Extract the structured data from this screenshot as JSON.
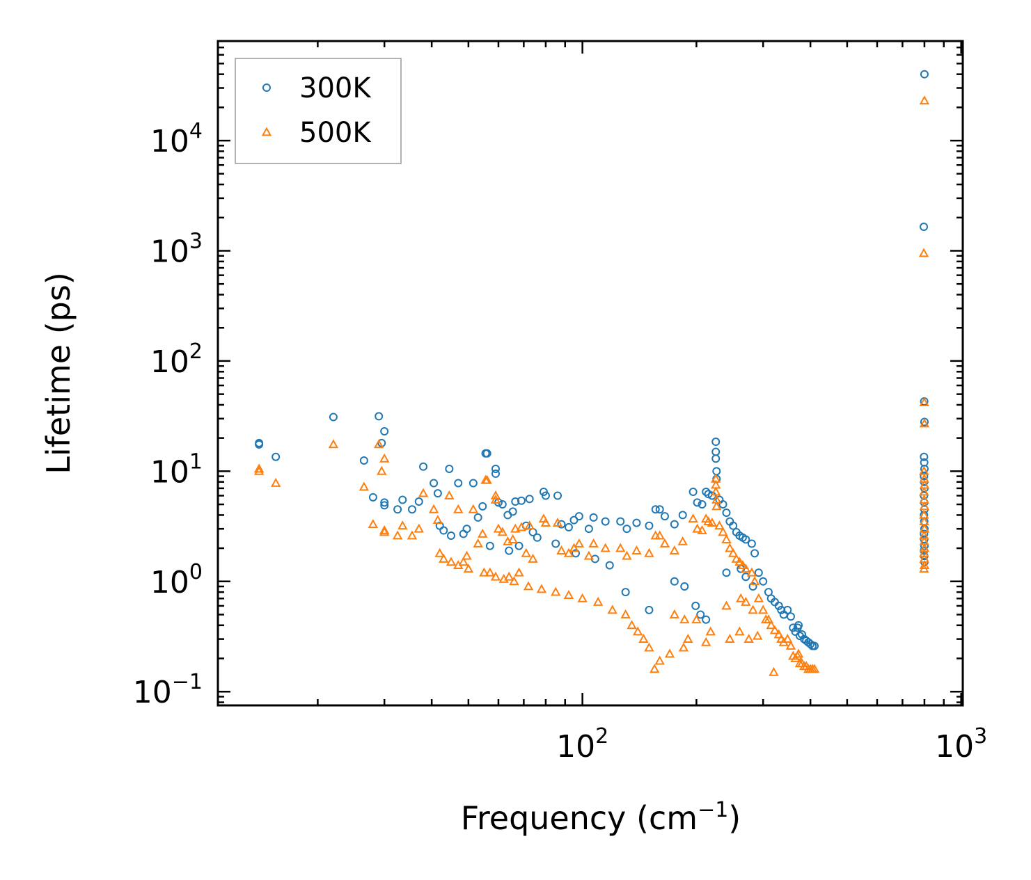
{
  "chart_data": {
    "type": "scatter",
    "title": "",
    "xlabel": "Frequency (cm",
    "xlabel_sup": "−1",
    "xlabel_close": ")",
    "ylabel": "Lifetime (ps)",
    "xscale": "log",
    "yscale": "log",
    "xlim": [
      10.9,
      1010
    ],
    "ylim": [
      0.075,
      80000
    ],
    "legend_position": "top-left",
    "x_ticks": [
      {
        "value": 100,
        "base": "10",
        "exp": "2"
      },
      {
        "value": 1000,
        "base": "10",
        "exp": "3"
      }
    ],
    "y_ticks": [
      {
        "value": 0.1,
        "base": "10",
        "exp": "−1"
      },
      {
        "value": 1,
        "base": "10",
        "exp": "0"
      },
      {
        "value": 10,
        "base": "10",
        "exp": "1"
      },
      {
        "value": 100,
        "base": "10",
        "exp": "2"
      },
      {
        "value": 1000,
        "base": "10",
        "exp": "3"
      },
      {
        "value": 10000,
        "base": "10",
        "exp": "4"
      }
    ],
    "series": [
      {
        "name": "300K",
        "marker": "circle",
        "color": "#1f77b4",
        "points": [
          [
            14.0,
            18.0
          ],
          [
            14.0,
            17.5
          ],
          [
            15.5,
            13.5
          ],
          [
            22.0,
            31.0
          ],
          [
            26.5,
            12.5
          ],
          [
            28.0,
            5.8
          ],
          [
            29.0,
            31.5
          ],
          [
            29.5,
            18.0
          ],
          [
            30.0,
            23.0
          ],
          [
            30.0,
            5.2
          ],
          [
            30.0,
            4.9
          ],
          [
            32.5,
            4.5
          ],
          [
            33.5,
            5.5
          ],
          [
            35.5,
            4.5
          ],
          [
            37.0,
            5.3
          ],
          [
            38.0,
            11.0
          ],
          [
            40.5,
            7.8
          ],
          [
            41.5,
            6.3
          ],
          [
            42.0,
            3.2
          ],
          [
            43.0,
            2.9
          ],
          [
            44.5,
            10.5
          ],
          [
            45.0,
            2.6
          ],
          [
            47.0,
            7.8
          ],
          [
            48.5,
            2.7
          ],
          [
            49.5,
            3.0
          ],
          [
            51.5,
            7.8
          ],
          [
            53.0,
            3.8
          ],
          [
            54.5,
            4.8
          ],
          [
            55.5,
            14.5
          ],
          [
            56.0,
            14.5
          ],
          [
            57.0,
            2.1
          ],
          [
            59.0,
            10.5
          ],
          [
            59.0,
            9.5
          ],
          [
            60.0,
            5.2
          ],
          [
            61.5,
            5.0
          ],
          [
            63.5,
            4.0
          ],
          [
            65.5,
            4.3
          ],
          [
            66.5,
            5.3
          ],
          [
            69.0,
            5.4
          ],
          [
            72.5,
            5.6
          ],
          [
            64.0,
            1.9
          ],
          [
            68.0,
            2.1
          ],
          [
            71.0,
            3.2
          ],
          [
            74.0,
            2.8
          ],
          [
            79.0,
            6.5
          ],
          [
            80.0,
            6.0
          ],
          [
            86.0,
            6.0
          ],
          [
            88.0,
            3.3
          ],
          [
            92.0,
            3.1
          ],
          [
            95.0,
            3.6
          ],
          [
            98.0,
            3.9
          ],
          [
            104.0,
            3.0
          ],
          [
            107.0,
            3.8
          ],
          [
            115.0,
            3.5
          ],
          [
            126.0,
            3.5
          ],
          [
            131.0,
            3.0
          ],
          [
            139.0,
            3.4
          ],
          [
            150.0,
            3.2
          ],
          [
            156.0,
            4.5
          ],
          [
            160.0,
            4.5
          ],
          [
            165.0,
            3.9
          ],
          [
            175.0,
            3.3
          ],
          [
            184.0,
            4.0
          ],
          [
            196.0,
            6.5
          ],
          [
            201.0,
            5.2
          ],
          [
            207.0,
            5.0
          ],
          [
            212.0,
            6.5
          ],
          [
            215.0,
            6.2
          ],
          [
            220.0,
            6.0
          ],
          [
            225.0,
            18.5
          ],
          [
            225.0,
            15.0
          ],
          [
            225.0,
            13.0
          ],
          [
            226.0,
            10.0
          ],
          [
            226.0,
            8.5
          ],
          [
            230.0,
            5.5
          ],
          [
            235.0,
            5.0
          ],
          [
            240.0,
            4.2
          ],
          [
            245.0,
            3.5
          ],
          [
            250.0,
            3.2
          ],
          [
            255.0,
            2.8
          ],
          [
            260.0,
            2.6
          ],
          [
            265.0,
            2.5
          ],
          [
            270.0,
            2.4
          ],
          [
            280.0,
            2.2
          ],
          [
            285.0,
            1.8
          ],
          [
            292.0,
            1.2
          ],
          [
            300.0,
            1.0
          ],
          [
            310.0,
            0.8
          ],
          [
            315.0,
            0.7
          ],
          [
            322.0,
            0.65
          ],
          [
            330.0,
            0.6
          ],
          [
            335.0,
            0.55
          ],
          [
            340.0,
            0.5
          ],
          [
            348.0,
            0.55
          ],
          [
            355.0,
            0.48
          ],
          [
            360.0,
            0.38
          ],
          [
            365.0,
            0.35
          ],
          [
            370.0,
            0.38
          ],
          [
            372.0,
            0.4
          ],
          [
            375.0,
            0.32
          ],
          [
            380.0,
            0.33
          ],
          [
            385.0,
            0.3
          ],
          [
            390.0,
            0.29
          ],
          [
            395.0,
            0.28
          ],
          [
            400.0,
            0.27
          ],
          [
            405.0,
            0.26
          ],
          [
            410.0,
            0.26
          ],
          [
            205.0,
            0.5
          ],
          [
            199.0,
            0.6
          ],
          [
            212.0,
            0.45
          ],
          [
            150.0,
            0.55
          ],
          [
            130.0,
            0.8
          ],
          [
            118.0,
            1.4
          ],
          [
            108.0,
            1.6
          ],
          [
            96.0,
            1.8
          ],
          [
            85.0,
            2.2
          ],
          [
            76.0,
            2.5
          ],
          [
            175.0,
            1.0
          ],
          [
            186.0,
            0.9
          ],
          [
            240.0,
            1.2
          ],
          [
            262.0,
            1.3
          ],
          [
            270.0,
            1.1
          ],
          [
            282.0,
            0.9
          ],
          [
            800.0,
            40000
          ],
          [
            797.0,
            1650
          ],
          [
            799.0,
            43
          ],
          [
            800.0,
            28
          ],
          [
            798.0,
            13.5
          ],
          [
            799.0,
            12.0
          ],
          [
            800.0,
            10.5
          ],
          [
            798.0,
            9.0
          ],
          [
            799.0,
            8.0
          ],
          [
            800.0,
            7.0
          ],
          [
            798.0,
            6.0
          ],
          [
            799.0,
            5.2
          ],
          [
            800.0,
            4.5
          ],
          [
            798.0,
            4.0
          ],
          [
            799.0,
            3.5
          ],
          [
            800.0,
            3.0
          ],
          [
            798.0,
            2.7
          ],
          [
            799.0,
            2.4
          ],
          [
            800.0,
            2.1
          ],
          [
            798.0,
            1.9
          ],
          [
            799.0,
            1.7
          ],
          [
            800.0,
            1.5
          ]
        ]
      },
      {
        "name": "500K",
        "marker": "triangle",
        "color": "#ff7f0e",
        "points": [
          [
            14.0,
            10.5
          ],
          [
            14.0,
            10.0
          ],
          [
            15.5,
            7.8
          ],
          [
            22.0,
            17.5
          ],
          [
            26.5,
            7.2
          ],
          [
            28.0,
            3.3
          ],
          [
            29.0,
            17.5
          ],
          [
            29.5,
            10.0
          ],
          [
            30.0,
            13.0
          ],
          [
            30.0,
            2.9
          ],
          [
            30.0,
            2.8
          ],
          [
            32.5,
            2.6
          ],
          [
            33.5,
            3.2
          ],
          [
            35.5,
            2.6
          ],
          [
            37.0,
            3.0
          ],
          [
            38.0,
            6.3
          ],
          [
            40.5,
            4.5
          ],
          [
            41.5,
            3.6
          ],
          [
            42.0,
            1.8
          ],
          [
            43.0,
            1.6
          ],
          [
            44.5,
            6.0
          ],
          [
            45.0,
            1.5
          ],
          [
            47.0,
            4.5
          ],
          [
            48.5,
            1.5
          ],
          [
            49.5,
            1.7
          ],
          [
            51.5,
            4.5
          ],
          [
            53.0,
            2.2
          ],
          [
            54.5,
            2.7
          ],
          [
            55.5,
            8.3
          ],
          [
            56.0,
            8.3
          ],
          [
            57.0,
            1.2
          ],
          [
            59.0,
            6.0
          ],
          [
            59.0,
            5.5
          ],
          [
            60.0,
            3.0
          ],
          [
            61.5,
            2.8
          ],
          [
            63.5,
            2.3
          ],
          [
            65.5,
            2.4
          ],
          [
            66.5,
            3.0
          ],
          [
            69.0,
            3.1
          ],
          [
            72.5,
            3.2
          ],
          [
            64.0,
            1.1
          ],
          [
            68.0,
            1.2
          ],
          [
            71.0,
            1.8
          ],
          [
            74.0,
            1.6
          ],
          [
            79.0,
            3.7
          ],
          [
            80.0,
            3.4
          ],
          [
            86.0,
            3.4
          ],
          [
            88.0,
            1.9
          ],
          [
            92.0,
            1.8
          ],
          [
            95.0,
            2.0
          ],
          [
            98.0,
            2.2
          ],
          [
            104.0,
            1.7
          ],
          [
            107.0,
            2.2
          ],
          [
            115.0,
            2.0
          ],
          [
            126.0,
            2.0
          ],
          [
            131.0,
            1.7
          ],
          [
            139.0,
            1.9
          ],
          [
            150.0,
            1.8
          ],
          [
            156.0,
            2.6
          ],
          [
            160.0,
            2.6
          ],
          [
            165.0,
            2.2
          ],
          [
            175.0,
            1.9
          ],
          [
            184.0,
            2.3
          ],
          [
            196.0,
            3.7
          ],
          [
            201.0,
            3.0
          ],
          [
            207.0,
            2.9
          ],
          [
            212.0,
            3.7
          ],
          [
            215.0,
            3.5
          ],
          [
            220.0,
            3.4
          ],
          [
            225.0,
            8.5
          ],
          [
            225.0,
            7.5
          ],
          [
            225.0,
            6.5
          ],
          [
            226.0,
            5.5
          ],
          [
            226.0,
            4.8
          ],
          [
            230.0,
            3.2
          ],
          [
            235.0,
            2.8
          ],
          [
            240.0,
            2.4
          ],
          [
            245.0,
            2.0
          ],
          [
            250.0,
            1.8
          ],
          [
            255.0,
            1.6
          ],
          [
            260.0,
            1.5
          ],
          [
            265.0,
            1.4
          ],
          [
            270.0,
            1.3
          ],
          [
            280.0,
            1.2
          ],
          [
            285.0,
            1.0
          ],
          [
            292.0,
            0.7
          ],
          [
            300.0,
            0.55
          ],
          [
            310.0,
            0.45
          ],
          [
            315.0,
            0.4
          ],
          [
            322.0,
            0.36
          ],
          [
            330.0,
            0.33
          ],
          [
            335.0,
            0.3
          ],
          [
            340.0,
            0.28
          ],
          [
            348.0,
            0.3
          ],
          [
            355.0,
            0.26
          ],
          [
            360.0,
            0.21
          ],
          [
            365.0,
            0.2
          ],
          [
            370.0,
            0.21
          ],
          [
            372.0,
            0.22
          ],
          [
            375.0,
            0.18
          ],
          [
            380.0,
            0.18
          ],
          [
            385.0,
            0.17
          ],
          [
            390.0,
            0.17
          ],
          [
            395.0,
            0.16
          ],
          [
            400.0,
            0.16
          ],
          [
            405.0,
            0.16
          ],
          [
            410.0,
            0.16
          ],
          [
            155.0,
            0.16
          ],
          [
            160.0,
            0.19
          ],
          [
            170.0,
            0.22
          ],
          [
            150.0,
            0.25
          ],
          [
            145.0,
            0.3
          ],
          [
            140.0,
            0.35
          ],
          [
            135.0,
            0.4
          ],
          [
            185.0,
            0.25
          ],
          [
            190.0,
            0.3
          ],
          [
            200.0,
            0.45
          ],
          [
            212.0,
            0.28
          ],
          [
            218.0,
            0.35
          ],
          [
            245.0,
            0.3
          ],
          [
            260.0,
            0.35
          ],
          [
            275.0,
            0.3
          ],
          [
            290.0,
            0.32
          ],
          [
            320.0,
            0.15
          ],
          [
            130.0,
            0.5
          ],
          [
            120.0,
            0.55
          ],
          [
            110.0,
            0.65
          ],
          [
            100.0,
            0.7
          ],
          [
            92.0,
            0.75
          ],
          [
            85.0,
            0.8
          ],
          [
            78.0,
            0.85
          ],
          [
            72.0,
            0.9
          ],
          [
            66.0,
            1.0
          ],
          [
            62.0,
            1.05
          ],
          [
            59.0,
            1.1
          ],
          [
            55.0,
            1.2
          ],
          [
            50.0,
            1.3
          ],
          [
            47.0,
            1.4
          ],
          [
            175.0,
            0.5
          ],
          [
            186.0,
            0.45
          ],
          [
            240.0,
            0.6
          ],
          [
            262.0,
            0.7
          ],
          [
            270.0,
            0.65
          ],
          [
            282.0,
            0.55
          ],
          [
            305.0,
            0.45
          ],
          [
            800.0,
            23000
          ],
          [
            797.0,
            950
          ],
          [
            799.0,
            42
          ],
          [
            800.0,
            27
          ],
          [
            798.0,
            10.0
          ],
          [
            799.0,
            8.5
          ],
          [
            800.0,
            7.5
          ],
          [
            798.0,
            6.5
          ],
          [
            799.0,
            5.5
          ],
          [
            800.0,
            4.8
          ],
          [
            798.0,
            4.0
          ],
          [
            799.0,
            3.5
          ],
          [
            800.0,
            3.0
          ],
          [
            798.0,
            2.6
          ],
          [
            799.0,
            2.3
          ],
          [
            800.0,
            2.0
          ],
          [
            798.0,
            1.8
          ],
          [
            799.0,
            1.6
          ],
          [
            800.0,
            1.4
          ],
          [
            798.0,
            1.3
          ]
        ]
      }
    ]
  }
}
